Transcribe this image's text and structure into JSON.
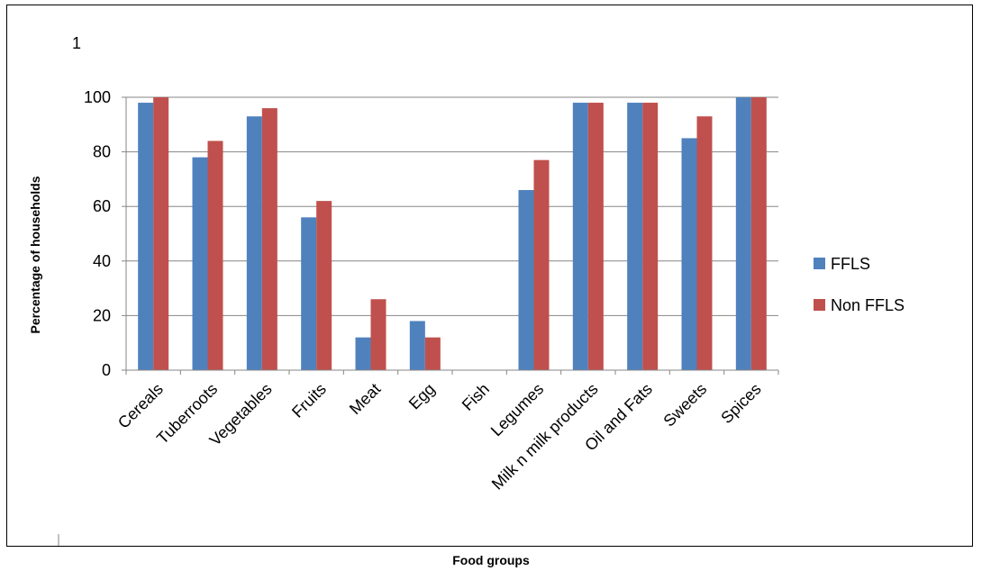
{
  "chart_data": {
    "type": "bar",
    "title": "",
    "corner_label": "1",
    "xlabel": "Food groups",
    "ylabel": "Percentage of households",
    "ylim": [
      0,
      100
    ],
    "yticks": [
      "0",
      "20",
      "40",
      "60",
      "80",
      "100"
    ],
    "categories": [
      "Cereals",
      "Tuberroots",
      "Vegetables",
      "Fruits",
      "Meat",
      "Egg",
      "Fish",
      "Legumes",
      "Milk n milk products",
      "Oil and Fats",
      "Sweets",
      "Spices"
    ],
    "series": [
      {
        "name": "FFLS",
        "color": "#4f81bd",
        "values": [
          98,
          78,
          93,
          56,
          12,
          18,
          0,
          66,
          98,
          98,
          85,
          100
        ]
      },
      {
        "name": "Non FFLS",
        "color": "#c0504d",
        "values": [
          100,
          84,
          96,
          62,
          26,
          12,
          0,
          77,
          98,
          98,
          93,
          100
        ]
      }
    ],
    "grid": true,
    "legend_position": "right"
  }
}
